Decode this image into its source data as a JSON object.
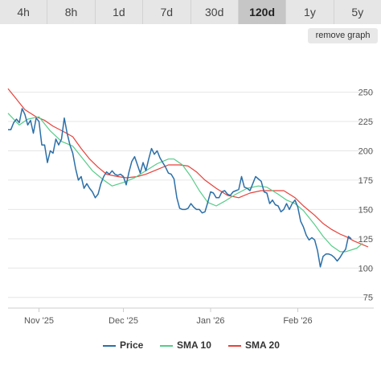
{
  "tabs": [
    {
      "label": "4h",
      "active": false
    },
    {
      "label": "8h",
      "active": false
    },
    {
      "label": "1d",
      "active": false
    },
    {
      "label": "7d",
      "active": false
    },
    {
      "label": "30d",
      "active": false
    },
    {
      "label": "120d",
      "active": true
    },
    {
      "label": "1y",
      "active": false
    },
    {
      "label": "5y",
      "active": false
    }
  ],
  "remove_graph_label": "remove graph",
  "colors": {
    "price": "#2b6fa8",
    "sma10": "#55cc88",
    "sma20": "#e8413a",
    "grid": "#e6e6e6"
  },
  "chart_data": {
    "type": "line",
    "x_ticks": [
      "Nov '25",
      "Dec '25",
      "Jan '26",
      "Feb '26"
    ],
    "y_ticks": [
      75,
      100,
      125,
      150,
      175,
      200,
      225,
      250
    ],
    "ylim": [
      70,
      260
    ],
    "xlim": [
      "2025-10-21",
      "2026-02-28"
    ],
    "grid": "horizontal",
    "legend_position": "bottom",
    "series": [
      {
        "name": "Price",
        "points": [
          [
            "2025-10-21",
            218
          ],
          [
            "2025-10-22",
            218
          ],
          [
            "2025-10-23",
            224
          ],
          [
            "2025-10-24",
            227
          ],
          [
            "2025-10-25",
            224
          ],
          [
            "2025-10-26",
            236
          ],
          [
            "2025-10-27",
            231
          ],
          [
            "2025-10-28",
            222
          ],
          [
            "2025-10-29",
            226
          ],
          [
            "2025-10-30",
            215
          ],
          [
            "2025-10-31",
            228
          ],
          [
            "2025-11-01",
            225
          ],
          [
            "2025-11-02",
            205
          ],
          [
            "2025-11-03",
            205
          ],
          [
            "2025-11-04",
            190
          ],
          [
            "2025-11-05",
            200
          ],
          [
            "2025-11-06",
            198
          ],
          [
            "2025-11-07",
            210
          ],
          [
            "2025-11-08",
            205
          ],
          [
            "2025-11-09",
            210
          ],
          [
            "2025-11-10",
            228
          ],
          [
            "2025-11-11",
            215
          ],
          [
            "2025-11-12",
            205
          ],
          [
            "2025-11-13",
            198
          ],
          [
            "2025-11-14",
            185
          ],
          [
            "2025-11-15",
            175
          ],
          [
            "2025-11-16",
            178
          ],
          [
            "2025-11-17",
            168
          ],
          [
            "2025-11-18",
            172
          ],
          [
            "2025-11-19",
            168
          ],
          [
            "2025-11-20",
            165
          ],
          [
            "2025-11-21",
            160
          ],
          [
            "2025-11-22",
            163
          ],
          [
            "2025-11-23",
            172
          ],
          [
            "2025-11-24",
            178
          ],
          [
            "2025-11-25",
            182
          ],
          [
            "2025-11-26",
            180
          ],
          [
            "2025-11-27",
            183
          ],
          [
            "2025-11-28",
            180
          ],
          [
            "2025-11-29",
            179
          ],
          [
            "2025-11-30",
            180
          ],
          [
            "2025-12-01",
            178
          ],
          [
            "2025-12-02",
            171
          ],
          [
            "2025-12-03",
            182
          ],
          [
            "2025-12-04",
            191
          ],
          [
            "2025-12-05",
            195
          ],
          [
            "2025-12-06",
            188
          ],
          [
            "2025-12-07",
            181
          ],
          [
            "2025-12-08",
            190
          ],
          [
            "2025-12-09",
            183
          ],
          [
            "2025-12-10",
            193
          ],
          [
            "2025-12-11",
            202
          ],
          [
            "2025-12-12",
            197
          ],
          [
            "2025-12-13",
            200
          ],
          [
            "2025-12-14",
            194
          ],
          [
            "2025-12-15",
            190
          ],
          [
            "2025-12-16",
            186
          ],
          [
            "2025-12-17",
            181
          ],
          [
            "2025-12-18",
            180
          ],
          [
            "2025-12-19",
            176
          ],
          [
            "2025-12-20",
            160
          ],
          [
            "2025-12-21",
            151
          ],
          [
            "2025-12-22",
            150
          ],
          [
            "2025-12-23",
            150
          ],
          [
            "2025-12-24",
            151
          ],
          [
            "2025-12-25",
            155
          ],
          [
            "2025-12-26",
            152
          ],
          [
            "2025-12-27",
            150
          ],
          [
            "2025-12-28",
            150
          ],
          [
            "2025-12-29",
            147
          ],
          [
            "2025-12-30",
            148
          ],
          [
            "2025-12-31",
            156
          ],
          [
            "2026-01-01",
            165
          ],
          [
            "2026-01-02",
            164
          ],
          [
            "2026-01-03",
            160
          ],
          [
            "2026-01-04",
            160
          ],
          [
            "2026-01-05",
            165
          ],
          [
            "2026-01-06",
            166
          ],
          [
            "2026-01-07",
            163
          ],
          [
            "2026-01-08",
            162
          ],
          [
            "2026-01-09",
            165
          ],
          [
            "2026-01-10",
            166
          ],
          [
            "2026-01-11",
            167
          ],
          [
            "2026-01-12",
            178
          ],
          [
            "2026-01-13",
            169
          ],
          [
            "2026-01-14",
            168
          ],
          [
            "2026-01-15",
            166
          ],
          [
            "2026-01-16",
            172
          ],
          [
            "2026-01-17",
            178
          ],
          [
            "2026-01-18",
            176
          ],
          [
            "2026-01-19",
            174
          ],
          [
            "2026-01-20",
            165
          ],
          [
            "2026-01-21",
            164
          ],
          [
            "2026-01-22",
            155
          ],
          [
            "2026-01-23",
            158
          ],
          [
            "2026-01-24",
            154
          ],
          [
            "2026-01-25",
            153
          ],
          [
            "2026-01-26",
            148
          ],
          [
            "2026-01-27",
            150
          ],
          [
            "2026-01-28",
            155
          ],
          [
            "2026-01-29",
            150
          ],
          [
            "2026-01-30",
            155
          ],
          [
            "2026-01-31",
            158
          ],
          [
            "2026-02-01",
            152
          ],
          [
            "2026-02-02",
            140
          ],
          [
            "2026-02-03",
            135
          ],
          [
            "2026-02-04",
            128
          ],
          [
            "2026-02-05",
            124
          ],
          [
            "2026-02-06",
            126
          ],
          [
            "2026-02-07",
            124
          ],
          [
            "2026-02-08",
            115
          ],
          [
            "2026-02-09",
            101
          ],
          [
            "2026-02-10",
            110
          ],
          [
            "2026-02-11",
            112
          ],
          [
            "2026-02-12",
            112
          ],
          [
            "2026-02-13",
            111
          ],
          [
            "2026-02-14",
            109
          ],
          [
            "2026-02-15",
            106
          ],
          [
            "2026-02-16",
            109
          ],
          [
            "2026-02-17",
            113
          ],
          [
            "2026-02-18",
            116
          ],
          [
            "2026-02-19",
            127
          ],
          [
            "2026-02-20",
            125
          ]
        ]
      },
      {
        "name": "SMA 10",
        "points": [
          [
            "2025-10-21",
            232
          ],
          [
            "2025-10-25",
            222
          ],
          [
            "2025-10-28",
            227
          ],
          [
            "2025-11-01",
            229
          ],
          [
            "2025-11-05",
            217
          ],
          [
            "2025-11-09",
            208
          ],
          [
            "2025-11-13",
            204
          ],
          [
            "2025-11-17",
            192
          ],
          [
            "2025-11-20",
            183
          ],
          [
            "2025-11-24",
            175
          ],
          [
            "2025-11-27",
            170
          ],
          [
            "2025-12-01",
            173
          ],
          [
            "2025-12-05",
            177
          ],
          [
            "2025-12-09",
            183
          ],
          [
            "2025-12-13",
            189
          ],
          [
            "2025-12-17",
            193
          ],
          [
            "2025-12-19",
            193
          ],
          [
            "2025-12-22",
            188
          ],
          [
            "2025-12-25",
            178
          ],
          [
            "2025-12-28",
            166
          ],
          [
            "2025-12-31",
            156
          ],
          [
            "2026-01-03",
            153
          ],
          [
            "2026-01-06",
            157
          ],
          [
            "2026-01-10",
            163
          ],
          [
            "2026-01-14",
            168
          ],
          [
            "2026-01-18",
            170
          ],
          [
            "2026-01-21",
            169
          ],
          [
            "2026-01-25",
            163
          ],
          [
            "2026-01-28",
            158
          ],
          [
            "2026-01-31",
            155
          ],
          [
            "2026-02-03",
            149
          ],
          [
            "2026-02-07",
            137
          ],
          [
            "2026-02-10",
            127
          ],
          [
            "2026-02-13",
            119
          ],
          [
            "2026-02-16",
            114
          ],
          [
            "2026-02-18",
            114
          ],
          [
            "2026-02-22",
            117
          ],
          [
            "2026-02-24",
            121
          ]
        ]
      },
      {
        "name": "SMA 20",
        "points": [
          [
            "2025-10-21",
            253
          ],
          [
            "2025-10-24",
            244
          ],
          [
            "2025-10-27",
            235
          ],
          [
            "2025-10-31",
            229
          ],
          [
            "2025-11-03",
            226
          ],
          [
            "2025-11-06",
            221
          ],
          [
            "2025-11-10",
            216
          ],
          [
            "2025-11-13",
            212
          ],
          [
            "2025-11-16",
            202
          ],
          [
            "2025-11-19",
            193
          ],
          [
            "2025-11-22",
            186
          ],
          [
            "2025-11-25",
            180
          ],
          [
            "2025-11-29",
            178
          ],
          [
            "2025-12-02",
            177
          ],
          [
            "2025-12-06",
            178
          ],
          [
            "2025-12-09",
            180
          ],
          [
            "2025-12-13",
            184
          ],
          [
            "2025-12-17",
            188
          ],
          [
            "2025-12-21",
            188
          ],
          [
            "2025-12-24",
            187
          ],
          [
            "2025-12-27",
            182
          ],
          [
            "2025-12-30",
            175
          ],
          [
            "2026-01-03",
            168
          ],
          [
            "2026-01-07",
            162
          ],
          [
            "2026-01-11",
            160
          ],
          [
            "2026-01-15",
            164
          ],
          [
            "2026-01-19",
            166
          ],
          [
            "2026-01-23",
            166
          ],
          [
            "2026-01-27",
            166
          ],
          [
            "2026-01-31",
            160
          ],
          [
            "2026-02-03",
            153
          ],
          [
            "2026-02-07",
            145
          ],
          [
            "2026-02-10",
            138
          ],
          [
            "2026-02-13",
            133
          ],
          [
            "2026-02-16",
            129
          ],
          [
            "2026-02-18",
            127
          ],
          [
            "2026-02-21",
            123
          ],
          [
            "2026-02-24",
            120
          ],
          [
            "2026-02-26",
            118
          ]
        ]
      }
    ]
  }
}
